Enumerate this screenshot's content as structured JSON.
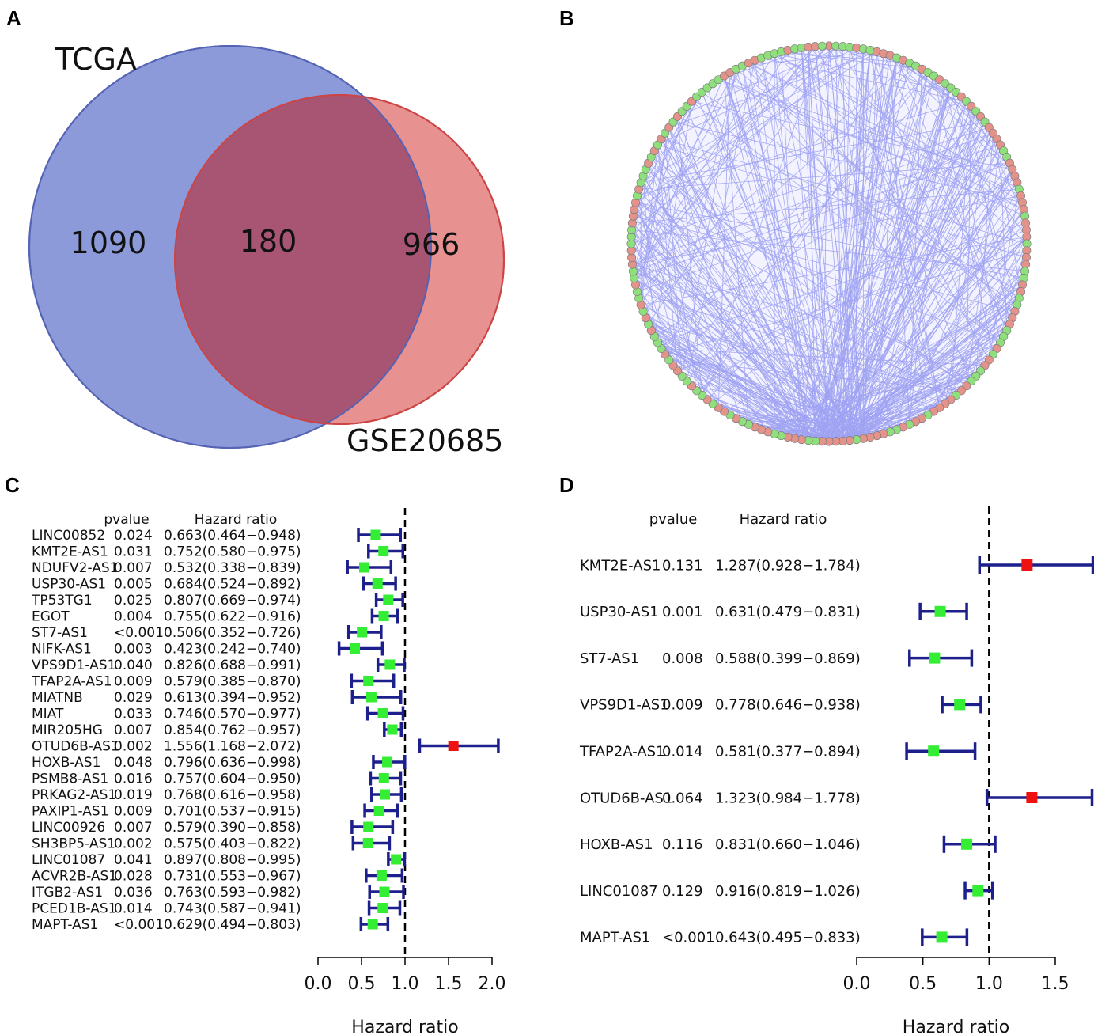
{
  "panels": {
    "a": "A",
    "b": "B",
    "c": "C",
    "d": "D"
  },
  "colors": {
    "venn_left": "#7f8fd6",
    "venn_left_stroke": "#5563b5",
    "venn_right": "#e48585",
    "venn_right_stroke": "#cc4444",
    "venn_overlap": "#a85574",
    "network_edge": "#9fa2f2",
    "node_red": "#e4938b",
    "node_green": "#8fe07d",
    "ci_line": "#1c1f8c",
    "protective": "#33ee33",
    "risk": "#ee1111"
  },
  "chart_data": [
    {
      "type": "venn",
      "panel": "A",
      "sets": [
        {
          "name": "TCGA",
          "only": "1090"
        },
        {
          "name": "GSE20685",
          "only": "966"
        }
      ],
      "intersection": "180"
    },
    {
      "type": "network",
      "panel": "B",
      "layout": "circle",
      "node_colors": [
        "red",
        "green"
      ]
    },
    {
      "type": "forest",
      "panel": "C",
      "col_pvalue": "pvalue",
      "col_hr": "Hazard ratio",
      "xlabel": "Hazard ratio",
      "xlim": [
        0,
        2
      ],
      "ticks": [
        "0.0",
        "0.5",
        "1.0",
        "1.5",
        "2.0"
      ],
      "tick_values": [
        0,
        0.5,
        1,
        1.5,
        2
      ],
      "refline": 1,
      "rows": [
        {
          "gene": "LINC00852",
          "p": "0.024",
          "hr": 0.663,
          "low": 0.464,
          "high": 0.948,
          "hrtext": "0.663(0.464−0.948)"
        },
        {
          "gene": "KMT2E-AS1",
          "p": "0.031",
          "hr": 0.752,
          "low": 0.58,
          "high": 0.975,
          "hrtext": "0.752(0.580−0.975)"
        },
        {
          "gene": "NDUFV2-AS1",
          "p": "0.007",
          "hr": 0.532,
          "low": 0.338,
          "high": 0.839,
          "hrtext": "0.532(0.338−0.839)"
        },
        {
          "gene": "USP30-AS1",
          "p": "0.005",
          "hr": 0.684,
          "low": 0.524,
          "high": 0.892,
          "hrtext": "0.684(0.524−0.892)"
        },
        {
          "gene": "TP53TG1",
          "p": "0.025",
          "hr": 0.807,
          "low": 0.669,
          "high": 0.974,
          "hrtext": "0.807(0.669−0.974)"
        },
        {
          "gene": "EGOT",
          "p": "0.004",
          "hr": 0.755,
          "low": 0.622,
          "high": 0.916,
          "hrtext": "0.755(0.622−0.916)"
        },
        {
          "gene": "ST7-AS1",
          "p": "<0.001",
          "hr": 0.506,
          "low": 0.352,
          "high": 0.726,
          "hrtext": "0.506(0.352−0.726)"
        },
        {
          "gene": "NIFK-AS1",
          "p": "0.003",
          "hr": 0.423,
          "low": 0.242,
          "high": 0.74,
          "hrtext": "0.423(0.242−0.740)"
        },
        {
          "gene": "VPS9D1-AS1",
          "p": "0.040",
          "hr": 0.826,
          "low": 0.688,
          "high": 0.991,
          "hrtext": "0.826(0.688−0.991)"
        },
        {
          "gene": "TFAP2A-AS1",
          "p": "0.009",
          "hr": 0.579,
          "low": 0.385,
          "high": 0.87,
          "hrtext": "0.579(0.385−0.870)"
        },
        {
          "gene": "MIATNB",
          "p": "0.029",
          "hr": 0.613,
          "low": 0.394,
          "high": 0.952,
          "hrtext": "0.613(0.394−0.952)"
        },
        {
          "gene": "MIAT",
          "p": "0.033",
          "hr": 0.746,
          "low": 0.57,
          "high": 0.977,
          "hrtext": "0.746(0.570−0.977)"
        },
        {
          "gene": "MIR205HG",
          "p": "0.007",
          "hr": 0.854,
          "low": 0.762,
          "high": 0.957,
          "hrtext": "0.854(0.762−0.957)"
        },
        {
          "gene": "OTUD6B-AS1",
          "p": "0.002",
          "hr": 1.556,
          "low": 1.168,
          "high": 2.072,
          "hrtext": "1.556(1.168−2.072)"
        },
        {
          "gene": "HOXB-AS1",
          "p": "0.048",
          "hr": 0.796,
          "low": 0.636,
          "high": 0.998,
          "hrtext": "0.796(0.636−0.998)"
        },
        {
          "gene": "PSMB8-AS1",
          "p": "0.016",
          "hr": 0.757,
          "low": 0.604,
          "high": 0.95,
          "hrtext": "0.757(0.604−0.950)"
        },
        {
          "gene": "PRKAG2-AS1",
          "p": "0.019",
          "hr": 0.768,
          "low": 0.616,
          "high": 0.958,
          "hrtext": "0.768(0.616−0.958)"
        },
        {
          "gene": "PAXIP1-AS1",
          "p": "0.009",
          "hr": 0.701,
          "low": 0.537,
          "high": 0.915,
          "hrtext": "0.701(0.537−0.915)"
        },
        {
          "gene": "LINC00926",
          "p": "0.007",
          "hr": 0.579,
          "low": 0.39,
          "high": 0.858,
          "hrtext": "0.579(0.390−0.858)"
        },
        {
          "gene": "SH3BP5-AS1",
          "p": "0.002",
          "hr": 0.575,
          "low": 0.403,
          "high": 0.822,
          "hrtext": "0.575(0.403−0.822)"
        },
        {
          "gene": "LINC01087",
          "p": "0.041",
          "hr": 0.897,
          "low": 0.808,
          "high": 0.995,
          "hrtext": "0.897(0.808−0.995)"
        },
        {
          "gene": "ACVR2B-AS1",
          "p": "0.028",
          "hr": 0.731,
          "low": 0.553,
          "high": 0.967,
          "hrtext": "0.731(0.553−0.967)"
        },
        {
          "gene": "ITGB2-AS1",
          "p": "0.036",
          "hr": 0.763,
          "low": 0.593,
          "high": 0.982,
          "hrtext": "0.763(0.593−0.982)"
        },
        {
          "gene": "PCED1B-AS1",
          "p": "0.014",
          "hr": 0.743,
          "low": 0.587,
          "high": 0.941,
          "hrtext": "0.743(0.587−0.941)"
        },
        {
          "gene": "MAPT-AS1",
          "p": "<0.001",
          "hr": 0.629,
          "low": 0.494,
          "high": 0.803,
          "hrtext": "0.629(0.494−0.803)"
        }
      ]
    },
    {
      "type": "forest",
      "panel": "D",
      "col_pvalue": "pvalue",
      "col_hr": "Hazard ratio",
      "xlabel": "Hazard ratio",
      "xlim": [
        0,
        1.5
      ],
      "ticks": [
        "0.0",
        "0.5",
        "1.0",
        "1.5"
      ],
      "tick_values": [
        0,
        0.5,
        1,
        1.5
      ],
      "refline": 1,
      "rows": [
        {
          "gene": "KMT2E-AS1",
          "p": "0.131",
          "hr": 1.287,
          "low": 0.928,
          "high": 1.784,
          "hrtext": "1.287(0.928−1.784)"
        },
        {
          "gene": "USP30-AS1",
          "p": "0.001",
          "hr": 0.631,
          "low": 0.479,
          "high": 0.831,
          "hrtext": "0.631(0.479−0.831)"
        },
        {
          "gene": "ST7-AS1",
          "p": "0.008",
          "hr": 0.588,
          "low": 0.399,
          "high": 0.869,
          "hrtext": "0.588(0.399−0.869)"
        },
        {
          "gene": "VPS9D1-AS1",
          "p": "0.009",
          "hr": 0.778,
          "low": 0.646,
          "high": 0.938,
          "hrtext": "0.778(0.646−0.938)"
        },
        {
          "gene": "TFAP2A-AS1",
          "p": "0.014",
          "hr": 0.581,
          "low": 0.377,
          "high": 0.894,
          "hrtext": "0.581(0.377−0.894)"
        },
        {
          "gene": "OTUD6B-AS1",
          "p": "0.064",
          "hr": 1.323,
          "low": 0.984,
          "high": 1.778,
          "hrtext": "1.323(0.984−1.778)"
        },
        {
          "gene": "HOXB-AS1",
          "p": "0.116",
          "hr": 0.831,
          "low": 0.66,
          "high": 1.046,
          "hrtext": "0.831(0.660−1.046)"
        },
        {
          "gene": "LINC01087",
          "p": "0.129",
          "hr": 0.916,
          "low": 0.819,
          "high": 1.026,
          "hrtext": "0.916(0.819−1.026)"
        },
        {
          "gene": "MAPT-AS1",
          "p": "<0.001",
          "hr": 0.643,
          "low": 0.495,
          "high": 0.833,
          "hrtext": "0.643(0.495−0.833)"
        }
      ]
    }
  ]
}
